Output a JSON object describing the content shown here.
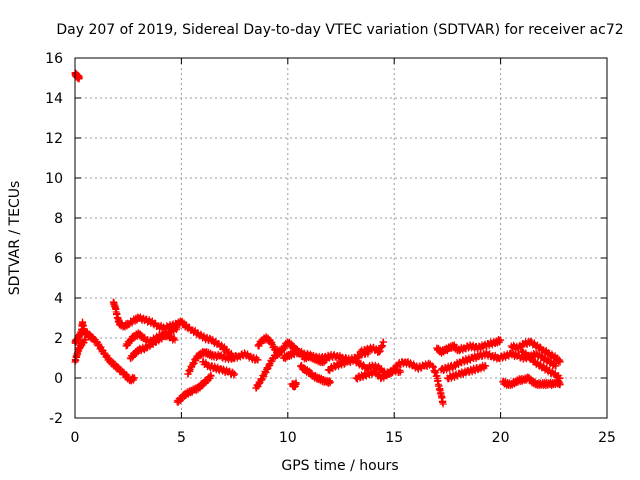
{
  "chart_data": {
    "type": "scatter",
    "title": "Day 207 of 2019, Sidereal Day-to-day VTEC variation (SDTVAR) for receiver ac72",
    "xlabel": "GPS time / hours",
    "ylabel": "SDTVAR / TECUs",
    "xlim": [
      0,
      25
    ],
    "ylim": [
      -2,
      16
    ],
    "x_ticks": [
      0,
      5,
      10,
      15,
      20,
      25
    ],
    "y_ticks": [
      -2,
      0,
      2,
      4,
      6,
      8,
      10,
      12,
      14,
      16
    ],
    "grid": true,
    "marker": "+",
    "color": "#ff0000",
    "series": [
      {
        "name": "SDTVAR",
        "segments": [
          {
            "x": [
              0.0,
              0.05,
              0.1,
              0.15,
              0.2
            ],
            "y": [
              15.2,
              15.15,
              15.1,
              15.05,
              15.0
            ]
          },
          {
            "x": [
              0.0,
              0.1,
              0.2,
              0.3,
              0.35,
              0.45,
              0.6,
              0.8,
              1.0,
              1.2,
              1.4,
              1.6,
              1.8,
              2.0,
              2.2,
              2.4,
              2.6,
              2.8
            ],
            "y": [
              1.8,
              1.9,
              2.1,
              2.3,
              2.8,
              2.3,
              2.2,
              2.0,
              1.8,
              1.5,
              1.2,
              0.9,
              0.7,
              0.5,
              0.3,
              0.1,
              -0.1,
              0.0
            ]
          },
          {
            "x": [
              0.0,
              0.1,
              0.2,
              0.3,
              0.5
            ],
            "y": [
              0.8,
              1.2,
              1.5,
              1.7,
              1.9
            ]
          },
          {
            "x": [
              1.8,
              1.9,
              2.0,
              2.1,
              2.3,
              2.5,
              2.8,
              3.0,
              3.3,
              3.6,
              3.9,
              4.2,
              4.5,
              4.8,
              5.0,
              5.2,
              5.5,
              5.8,
              6.1,
              6.4,
              6.7,
              7.0,
              7.2,
              7.5
            ],
            "y": [
              3.8,
              3.5,
              3.0,
              2.7,
              2.6,
              2.7,
              2.9,
              3.0,
              2.9,
              2.8,
              2.6,
              2.5,
              2.6,
              2.7,
              2.8,
              2.6,
              2.4,
              2.2,
              2.0,
              1.9,
              1.7,
              1.5,
              1.3,
              1.0
            ]
          },
          {
            "x": [
              2.4,
              2.6,
              2.8,
              3.0,
              3.2,
              3.5,
              3.8,
              4.1,
              4.4,
              4.7
            ],
            "y": [
              1.6,
              1.9,
              2.1,
              2.2,
              2.0,
              1.8,
              2.0,
              2.2,
              2.1,
              1.9
            ]
          },
          {
            "x": [
              2.6,
              2.8,
              3.0,
              3.3,
              3.6,
              3.9,
              4.2,
              4.5,
              4.8
            ],
            "y": [
              1.0,
              1.2,
              1.4,
              1.5,
              1.7,
              1.9,
              2.1,
              2.3,
              2.5
            ]
          },
          {
            "x": [
              4.8,
              5.0,
              5.2,
              5.4,
              5.6,
              5.8,
              6.0,
              6.2,
              6.4
            ],
            "y": [
              -1.2,
              -1.0,
              -0.8,
              -0.7,
              -0.6,
              -0.5,
              -0.3,
              -0.1,
              0.1
            ]
          },
          {
            "x": [
              5.3,
              5.5,
              5.7,
              5.9,
              6.1,
              6.3,
              6.5,
              6.8,
              7.1,
              7.4,
              7.7,
              8.0,
              8.3,
              8.6
            ],
            "y": [
              0.2,
              0.6,
              1.0,
              1.2,
              1.3,
              1.2,
              1.1,
              1.1,
              1.0,
              1.0,
              1.1,
              1.2,
              1.0,
              0.9
            ]
          },
          {
            "x": [
              6.0,
              6.3,
              6.6,
              6.9,
              7.2,
              7.5
            ],
            "y": [
              0.8,
              0.6,
              0.5,
              0.4,
              0.3,
              0.2
            ]
          },
          {
            "x": [
              8.5,
              8.7,
              8.9,
              9.1,
              9.3,
              9.5,
              9.7
            ],
            "y": [
              -0.5,
              -0.2,
              0.2,
              0.6,
              1.0,
              1.2,
              1.3
            ]
          },
          {
            "x": [
              8.6,
              8.8,
              9.0,
              9.2,
              9.4,
              9.6,
              9.8,
              10.0,
              10.2,
              10.4,
              10.6,
              10.8,
              11.0,
              11.2,
              11.4,
              11.6,
              11.8
            ],
            "y": [
              1.6,
              1.9,
              2.0,
              1.8,
              1.4,
              1.3,
              1.5,
              1.8,
              1.6,
              1.4,
              1.2,
              1.0,
              1.1,
              1.0,
              0.9,
              0.8,
              0.9
            ]
          },
          {
            "x": [
              9.8,
              10.0,
              10.2,
              10.5,
              10.8,
              11.1,
              11.4,
              11.7,
              12.0,
              12.3,
              12.6,
              12.9,
              13.2,
              13.5,
              13.8
            ],
            "y": [
              1.0,
              1.1,
              1.2,
              1.3,
              1.2,
              1.1,
              1.0,
              1.0,
              1.1,
              1.1,
              1.0,
              0.9,
              1.0,
              1.2,
              1.3
            ]
          },
          {
            "x": [
              10.2,
              10.3,
              10.4
            ],
            "y": [
              -0.3,
              -0.4,
              -0.3
            ]
          },
          {
            "x": [
              10.6,
              10.8,
              11.0,
              11.2,
              11.4,
              11.6,
              11.8,
              12.0
            ],
            "y": [
              0.6,
              0.4,
              0.3,
              0.1,
              0.0,
              -0.1,
              -0.2,
              -0.2
            ]
          },
          {
            "x": [
              11.9,
              12.2,
              12.5,
              12.8,
              13.1,
              13.4,
              13.7,
              14.0,
              14.3,
              14.6,
              14.9,
              15.2,
              15.5,
              15.8,
              16.1,
              16.4,
              16.7
            ],
            "y": [
              0.4,
              0.6,
              0.7,
              0.8,
              0.9,
              0.7,
              0.5,
              0.6,
              0.5,
              0.2,
              0.3,
              0.7,
              0.8,
              0.7,
              0.5,
              0.6,
              0.7
            ]
          },
          {
            "x": [
              13.4,
              13.7,
              14.0,
              14.3,
              14.5
            ],
            "y": [
              1.3,
              1.4,
              1.5,
              1.3,
              1.8
            ]
          },
          {
            "x": [
              13.2,
              13.5,
              13.8,
              14.1,
              14.4,
              14.7,
              15.0,
              15.3
            ],
            "y": [
              0.0,
              0.1,
              0.2,
              0.3,
              0.0,
              0.2,
              0.4,
              0.3
            ]
          },
          {
            "x": [
              16.8,
              17.0,
              17.1,
              17.2,
              17.3
            ],
            "y": [
              0.6,
              0.1,
              -0.4,
              -0.8,
              -1.3
            ]
          },
          {
            "x": [
              17.0,
              17.2,
              17.4,
              17.6,
              17.8,
              18.0,
              18.3,
              18.6,
              18.9,
              19.2,
              19.5,
              19.8,
              20.0
            ],
            "y": [
              1.5,
              1.3,
              1.4,
              1.5,
              1.6,
              1.4,
              1.5,
              1.6,
              1.5,
              1.6,
              1.7,
              1.8,
              1.9
            ]
          },
          {
            "x": [
              17.2,
              17.5,
              17.8,
              18.1,
              18.4,
              18.7,
              19.0,
              19.3,
              19.6,
              19.9,
              20.2,
              20.5,
              20.8,
              21.1,
              21.4,
              21.7,
              22.0,
              22.3,
              22.6
            ],
            "y": [
              0.4,
              0.5,
              0.6,
              0.8,
              0.9,
              1.0,
              1.1,
              1.2,
              1.1,
              1.0,
              1.1,
              1.2,
              1.1,
              1.0,
              1.1,
              1.2,
              1.0,
              0.8,
              0.6
            ]
          },
          {
            "x": [
              17.5,
              17.8,
              18.1,
              18.4,
              18.7,
              19.0,
              19.3
            ],
            "y": [
              0.0,
              0.1,
              0.2,
              0.3,
              0.4,
              0.5,
              0.6
            ]
          },
          {
            "x": [
              20.1,
              20.3,
              20.5,
              20.7,
              20.9,
              21.1,
              21.3,
              21.5,
              21.7,
              21.9,
              22.1,
              22.3,
              22.5,
              22.7,
              22.8
            ],
            "y": [
              -0.2,
              -0.3,
              -0.3,
              -0.2,
              -0.1,
              -0.1,
              0.0,
              -0.2,
              -0.3,
              -0.3,
              -0.3,
              -0.3,
              -0.3,
              -0.2,
              -0.3
            ]
          },
          {
            "x": [
              20.5,
              20.8,
              21.1,
              21.4,
              21.7,
              22.0,
              22.3,
              22.6,
              22.8
            ],
            "y": [
              1.6,
              1.5,
              1.7,
              1.8,
              1.6,
              1.4,
              1.2,
              1.0,
              0.8
            ]
          },
          {
            "x": [
              21.0,
              21.3,
              21.6,
              21.9,
              22.2,
              22.5,
              22.8
            ],
            "y": [
              1.3,
              1.1,
              0.8,
              0.6,
              0.4,
              0.2,
              0.0
            ]
          }
        ]
      }
    ]
  }
}
